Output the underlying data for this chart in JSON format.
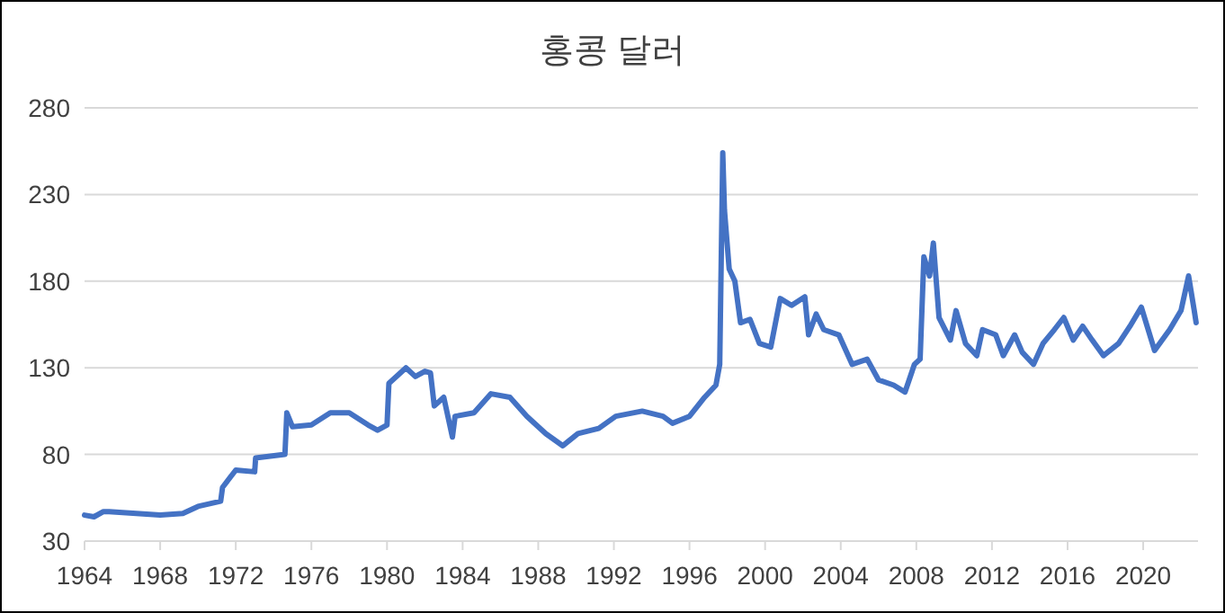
{
  "chart_data": {
    "type": "line",
    "title": "홍콩 달러",
    "x": [
      1964.0,
      1964.5,
      1965.0,
      1965.3,
      1968.0,
      1969.2,
      1970.0,
      1971.2,
      1971.3,
      1972.0,
      1973.0,
      1973.05,
      1974.6,
      1974.7,
      1975.0,
      1976.0,
      1977.0,
      1978.0,
      1979.0,
      1979.5,
      1980.0,
      1980.1,
      1981.0,
      1981.5,
      1982.0,
      1982.3,
      1982.5,
      1983.0,
      1983.46,
      1983.6,
      1984.6,
      1985.5,
      1986.5,
      1987.4,
      1988.4,
      1989.3,
      1990.1,
      1991.2,
      1992.1,
      1993.5,
      1994.6,
      1995.1,
      1996.0,
      1996.8,
      1997.4,
      1997.6,
      1997.76,
      1997.85,
      1998.1,
      1998.4,
      1998.7,
      1999.2,
      1999.7,
      2000.3,
      2000.8,
      2001.4,
      2002.1,
      2002.3,
      2002.7,
      2003.1,
      2003.9,
      2004.6,
      2005.4,
      2006.0,
      2006.8,
      2007.4,
      2007.9,
      2008.2,
      2008.4,
      2008.7,
      2008.9,
      2009.2,
      2009.8,
      2010.1,
      2010.6,
      2011.2,
      2011.5,
      2012.2,
      2012.6,
      2013.2,
      2013.6,
      2014.2,
      2014.7,
      2015.3,
      2015.8,
      2016.3,
      2016.8,
      2017.3,
      2017.9,
      2018.7,
      2019.3,
      2019.9,
      2020.6,
      2021.4,
      2022.0,
      2022.4,
      2022.7,
      2022.8
    ],
    "values": [
      45,
      44,
      47,
      47,
      45,
      46,
      50,
      53,
      61,
      71,
      70,
      78,
      80,
      104,
      96,
      97,
      104,
      104,
      97,
      94,
      97,
      121,
      130,
      125,
      128,
      127,
      108,
      113,
      90,
      102,
      104,
      115,
      113,
      102,
      92,
      85,
      92,
      95,
      102,
      105,
      102,
      98,
      102,
      113,
      120,
      132,
      254,
      221,
      187,
      180,
      156,
      158,
      144,
      142,
      170,
      166,
      171,
      149,
      161,
      152,
      149,
      132,
      135,
      123,
      120,
      116,
      132,
      135,
      194,
      183,
      202,
      159,
      146,
      163,
      144,
      137,
      152,
      149,
      137,
      149,
      139,
      132,
      144,
      152,
      159,
      146,
      154,
      146,
      137,
      144,
      154,
      165,
      140,
      152,
      163,
      183,
      163,
      156
    ],
    "color": "#4472c4",
    "xlim": [
      1964,
      2022.9
    ],
    "xticks": [
      1964,
      1968,
      1972,
      1976,
      1980,
      1984,
      1988,
      1992,
      1996,
      2000,
      2004,
      2008,
      2012,
      2016,
      2020
    ],
    "ylim": [
      30,
      280
    ],
    "yticks": [
      30,
      80,
      130,
      180,
      230,
      280
    ],
    "grid": "y"
  }
}
